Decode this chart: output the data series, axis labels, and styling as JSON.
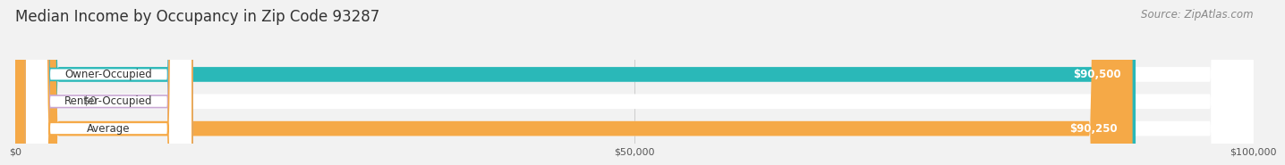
{
  "title": "Median Income by Occupancy in Zip Code 93287",
  "source": "Source: ZipAtlas.com",
  "categories": [
    "Owner-Occupied",
    "Renter-Occupied",
    "Average"
  ],
  "values": [
    90500,
    0,
    90250
  ],
  "bar_colors": [
    "#2ab8b8",
    "#c9a8d4",
    "#f5a947"
  ],
  "value_labels": [
    "$90,500",
    "$0",
    "$90,250"
  ],
  "xlim": [
    0,
    100000
  ],
  "xticks": [
    0,
    50000,
    100000
  ],
  "xtick_labels": [
    "$0",
    "$50,000",
    "$100,000"
  ],
  "bar_height": 0.55,
  "background_color": "#f2f2f2",
  "title_fontsize": 12,
  "source_fontsize": 8.5,
  "label_fontsize": 8.5,
  "value_fontsize": 8.5
}
